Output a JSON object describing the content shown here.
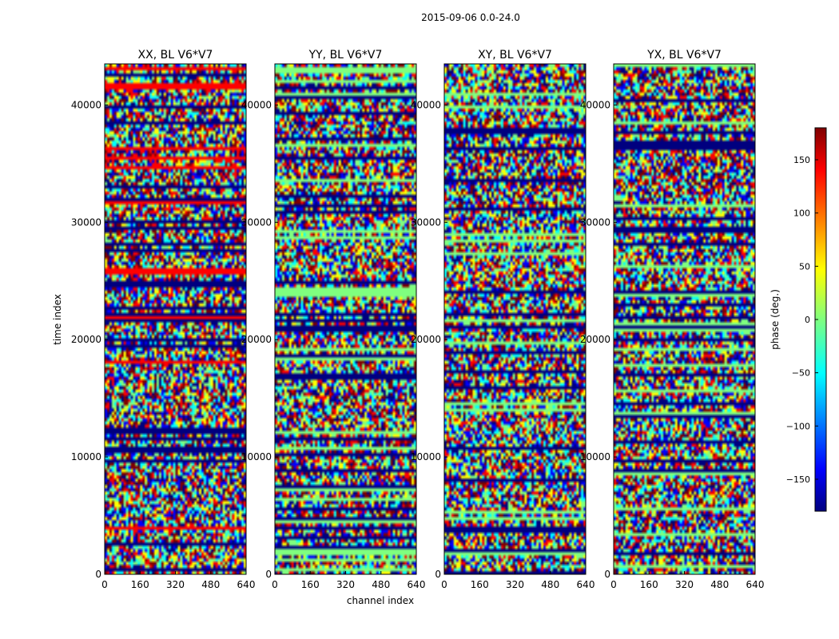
{
  "figure": {
    "suptitle": "2015-09-06 0.0-24.0"
  },
  "chart_data": {
    "type": "heatmap",
    "panels": [
      {
        "title": "XX, BL V6*V7"
      },
      {
        "title": "YY, BL V6*V7"
      },
      {
        "title": "XY, BL V6*V7"
      },
      {
        "title": "YX, BL V6*V7"
      }
    ],
    "xlabel": "channel index",
    "ylabel": "time index",
    "xlim": [
      0,
      640
    ],
    "ylim": [
      0,
      43500
    ],
    "xticks": [
      0,
      160,
      320,
      480,
      640
    ],
    "yticks": [
      0,
      10000,
      20000,
      30000,
      40000
    ],
    "colorbar": {
      "label": "phase (deg.)",
      "range": [
        -180,
        180
      ],
      "ticks": [
        150,
        100,
        50,
        0,
        -50,
        -100,
        -150
      ],
      "colormap": "jet"
    },
    "colormap_stops": [
      "#00007f",
      "#0000ff",
      "#00ffff",
      "#7fff7f",
      "#ffff00",
      "#ff0000",
      "#7f0000"
    ]
  }
}
